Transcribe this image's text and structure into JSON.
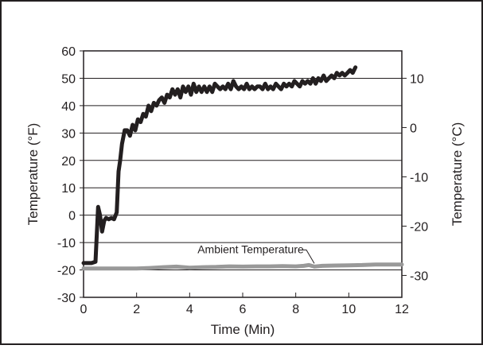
{
  "chart_data": {
    "type": "line",
    "title": "",
    "xlabel": "Time (Min)",
    "ylabel": "Temperature (°F)",
    "y2label": "Temperature (°C)",
    "xlim": [
      0,
      12
    ],
    "ylim": [
      -30,
      60
    ],
    "y2lim_celsius_ticks": [
      -30,
      -20,
      -10,
      0,
      10
    ],
    "x_ticks": [
      "0",
      "2",
      "4",
      "6",
      "8",
      "10",
      "12"
    ],
    "y_ticks": [
      "-30",
      "-20",
      "-10",
      "0",
      "10",
      "20",
      "30",
      "40",
      "50",
      "60"
    ],
    "y2_ticks": [
      "-30",
      "-20",
      "-10",
      "0",
      "10"
    ],
    "grid": "horizontal",
    "series": [
      {
        "color": "#231f20",
        "x": [
          0.0,
          0.3,
          0.45,
          0.55,
          0.62,
          0.7,
          0.78,
          0.85,
          0.95,
          1.05,
          1.15,
          1.25,
          1.32,
          1.38,
          1.45,
          1.55,
          1.65,
          1.75,
          1.85,
          1.95,
          2.05,
          2.15,
          2.25,
          2.35,
          2.45,
          2.55,
          2.65,
          2.75,
          2.85,
          2.95,
          3.05,
          3.15,
          3.25,
          3.35,
          3.45,
          3.55,
          3.65,
          3.75,
          3.85,
          3.95,
          4.05,
          4.15,
          4.25,
          4.35,
          4.45,
          4.55,
          4.65,
          4.75,
          4.85,
          4.95,
          5.05,
          5.15,
          5.25,
          5.35,
          5.45,
          5.55,
          5.65,
          5.75,
          5.85,
          5.95,
          6.05,
          6.15,
          6.25,
          6.35,
          6.45,
          6.55,
          6.65,
          6.75,
          6.85,
          6.95,
          7.05,
          7.15,
          7.25,
          7.35,
          7.45,
          7.55,
          7.65,
          7.75,
          7.85,
          7.95,
          8.05,
          8.15,
          8.25,
          8.35,
          8.45,
          8.55,
          8.65,
          8.75,
          8.85,
          8.95,
          9.05,
          9.15,
          9.25,
          9.35,
          9.45,
          9.55,
          9.65,
          9.75,
          9.85,
          9.95,
          10.05,
          10.15,
          10.25
        ],
        "y": [
          -17.5,
          -17.5,
          -17,
          3,
          0,
          -6,
          -2,
          -1,
          -1.5,
          -1,
          -1.5,
          1,
          16,
          20,
          26,
          31,
          31,
          29,
          33,
          31,
          35,
          34,
          37,
          36,
          40,
          38,
          41,
          40,
          42,
          43,
          41,
          44,
          43,
          46,
          44,
          46,
          43,
          47,
          45,
          47,
          44,
          48,
          45,
          47,
          45,
          47,
          45,
          47,
          45,
          48,
          47,
          46,
          47,
          46,
          48,
          46,
          49,
          47,
          46,
          47,
          46,
          48,
          46,
          47,
          46,
          47,
          47,
          46,
          48,
          46,
          47,
          46,
          48,
          47,
          46,
          48,
          47,
          48,
          47,
          49,
          48,
          47,
          49,
          48,
          49,
          48,
          50,
          48,
          50,
          49,
          51,
          49,
          50,
          51,
          50,
          52,
          51,
          52,
          51,
          52,
          53,
          52,
          54
        ]
      },
      {
        "name": "Ambient Temperature",
        "color": "#999999",
        "x": [
          0,
          1,
          2,
          2.5,
          3,
          3.5,
          4,
          4.5,
          5,
          5.5,
          6,
          6.5,
          7,
          7.5,
          8,
          8.3,
          8.5,
          8.7,
          9,
          9.5,
          10,
          10.5,
          11,
          11.5,
          12
        ],
        "y": [
          -19.5,
          -19.5,
          -19.5,
          -19.3,
          -19,
          -18.8,
          -19.2,
          -19,
          -18.9,
          -18.7,
          -18.8,
          -18.7,
          -18.7,
          -18.6,
          -18.7,
          -18.5,
          -18.2,
          -18.8,
          -18.5,
          -18.4,
          -18.3,
          -18.2,
          -18,
          -18,
          -18
        ]
      }
    ],
    "annotations": [
      {
        "text": "Ambient Temperature",
        "x": 8.7,
        "y": -18.5
      }
    ]
  }
}
